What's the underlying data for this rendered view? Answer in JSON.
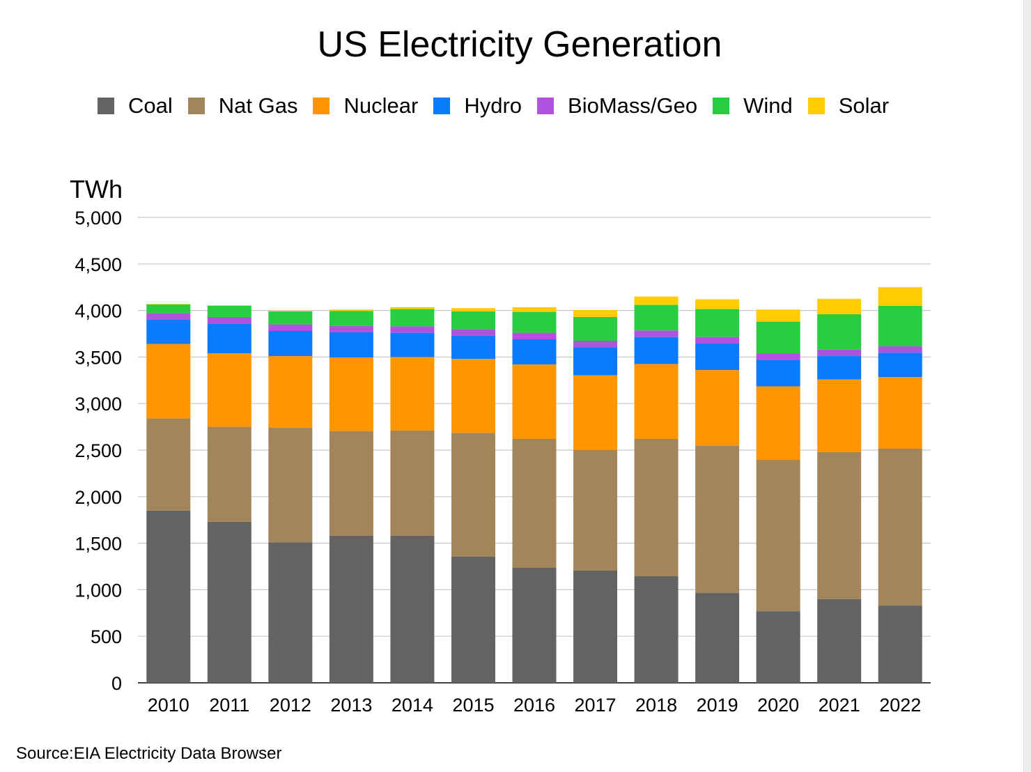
{
  "chart_data": {
    "type": "stacked-bar",
    "title": "US Electricity Generation",
    "ylabel": "TWh",
    "xlabel": "",
    "ylim": [
      0,
      5000
    ],
    "yticks": [
      0,
      500,
      1000,
      1500,
      2000,
      2500,
      3000,
      3500,
      4000,
      4500,
      5000
    ],
    "ytick_labels": [
      "0",
      "500",
      "1,000",
      "1,500",
      "2,000",
      "2,500",
      "3,000",
      "3,500",
      "4,000",
      "4,500",
      "5,000"
    ],
    "grid": true,
    "legend_position": "top",
    "categories": [
      "2010",
      "2011",
      "2012",
      "2013",
      "2014",
      "2015",
      "2016",
      "2017",
      "2018",
      "2019",
      "2020",
      "2021",
      "2022"
    ],
    "series": [
      {
        "name": "Coal",
        "color": "#636363",
        "values": [
          1850,
          1730,
          1510,
          1580,
          1580,
          1355,
          1235,
          1205,
          1145,
          965,
          770,
          900,
          830
        ]
      },
      {
        "name": "Nat Gas",
        "color": "#a3855c",
        "values": [
          990,
          1020,
          1230,
          1125,
          1130,
          1330,
          1385,
          1295,
          1475,
          1585,
          1625,
          1580,
          1685
        ]
      },
      {
        "name": "Nuclear",
        "color": "#ff9500",
        "values": [
          800,
          790,
          770,
          790,
          790,
          795,
          800,
          805,
          805,
          810,
          790,
          780,
          770
        ]
      },
      {
        "name": "Hydro",
        "color": "#0a7aff",
        "values": [
          260,
          320,
          270,
          270,
          260,
          250,
          270,
          300,
          290,
          285,
          285,
          250,
          260
        ]
      },
      {
        "name": "BioMass/Geo",
        "color": "#af52de",
        "values": [
          70,
          70,
          70,
          70,
          70,
          70,
          70,
          70,
          70,
          70,
          70,
          70,
          70
        ]
      },
      {
        "name": "Wind",
        "color": "#28cd41",
        "values": [
          95,
          120,
          140,
          160,
          185,
          190,
          225,
          255,
          275,
          300,
          340,
          380,
          435
        ]
      },
      {
        "name": "Solar",
        "color": "#ffcc00",
        "values": [
          5,
          5,
          5,
          15,
          20,
          35,
          50,
          75,
          90,
          105,
          130,
          165,
          200
        ]
      }
    ],
    "source": "Source:EIA Electricity Data Browser"
  }
}
